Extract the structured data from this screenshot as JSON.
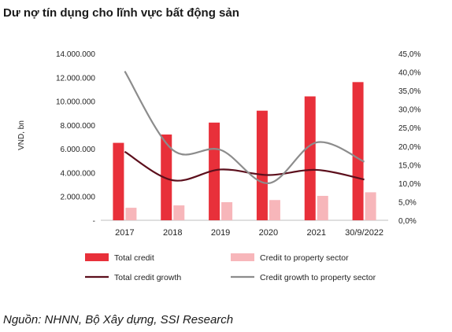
{
  "chart_data": {
    "type": "bar",
    "title": "Dư nợ tín dụng cho lĩnh vực bất động sản",
    "ylabel": "VND, bn",
    "categories": [
      "2017",
      "2018",
      "2019",
      "2020",
      "2021",
      "30/9/2022"
    ],
    "ylim": [
      0,
      14000000
    ],
    "y2lim": [
      0,
      45
    ],
    "y_ticks": [
      "-",
      "2.000.000",
      "4.000.000",
      "6.000.000",
      "8.000.000",
      "10.000.000",
      "12.000.000",
      "14.000.000"
    ],
    "y2_ticks": [
      "0,0%",
      "5,0%",
      "10,0%",
      "15,0%",
      "20,0%",
      "25,0%",
      "30,0%",
      "35,0%",
      "40,0%",
      "45,0%"
    ],
    "bar_series": [
      {
        "name": "Total credit",
        "color": "#e8303a",
        "values": [
          6500000,
          7200000,
          8200000,
          9200000,
          10400000,
          11600000
        ]
      },
      {
        "name": "Credit to property sector",
        "color": "#f7b6ba",
        "values": [
          1050000,
          1250000,
          1520000,
          1700000,
          2050000,
          2350000
        ]
      }
    ],
    "line_series": [
      {
        "name": "Total credit growth",
        "color": "#5c0f1c",
        "axis": "right",
        "values": [
          18.5,
          10.8,
          13.7,
          12.2,
          13.6,
          11.0
        ]
      },
      {
        "name": "Credit growth to property sector",
        "color": "#8c8c8c",
        "axis": "right",
        "values": [
          40.2,
          19.0,
          19.0,
          10.0,
          21.0,
          15.8
        ]
      }
    ],
    "grid": false,
    "legend_position": "bottom"
  },
  "source_note": "Nguồn: NHNN, Bộ Xây dựng, SSI Research"
}
